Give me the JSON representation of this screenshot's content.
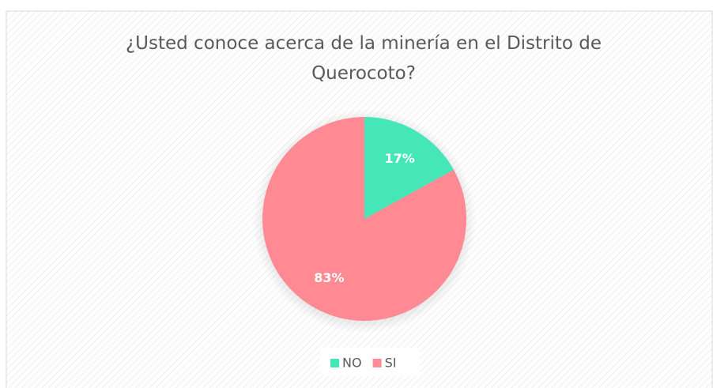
{
  "chart_data": {
    "type": "pie",
    "title": "¿Usted conoce acerca de la minería en el Distrito de Querocoto?",
    "categories": [
      "NO",
      "SI"
    ],
    "values": [
      17,
      83
    ],
    "value_labels": [
      "17%",
      "83%"
    ],
    "colors": [
      "#45e6b8",
      "#ff8a94"
    ],
    "legend": "bottom"
  }
}
